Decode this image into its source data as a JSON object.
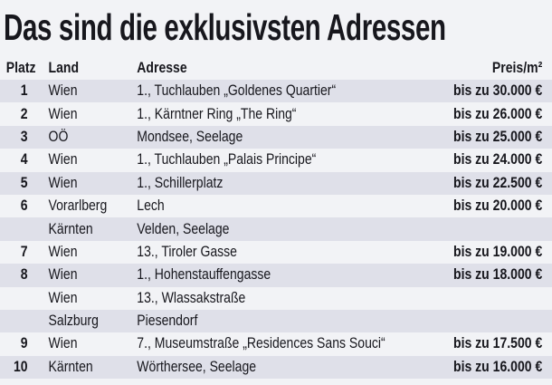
{
  "title": "Das sind die exklusivsten Adressen",
  "colors": {
    "background": "#f2f3f6",
    "row_shade": "#dfe0e9",
    "text": "#17171d"
  },
  "table": {
    "headers": {
      "platz": "Platz",
      "land": "Land",
      "adresse": "Adresse",
      "preis": "Preis/m²"
    },
    "rows": [
      {
        "rank": "1",
        "land": "Wien",
        "adresse": "1., Tuchlauben „Goldenes Quartier“",
        "preis": "bis zu 30.000 €"
      },
      {
        "rank": "2",
        "land": "Wien",
        "adresse": "1., Kärntner Ring „The Ring“",
        "preis": "bis zu 26.000 €"
      },
      {
        "rank": "3",
        "land": "OÖ",
        "adresse": "Mondsee, Seelage",
        "preis": "bis zu 25.000 €"
      },
      {
        "rank": "4",
        "land": "Wien",
        "adresse": "1., Tuchlauben „Palais Principe“",
        "preis": "bis zu 24.000 €"
      },
      {
        "rank": "5",
        "land": "Wien",
        "adresse": "1., Schillerplatz",
        "preis": "bis zu 22.500 €"
      },
      {
        "rank": "6",
        "land": "Vorarlberg",
        "adresse": "Lech",
        "preis": "bis zu 20.000 €"
      },
      {
        "rank": "",
        "land": "Kärnten",
        "adresse": "Velden, Seelage",
        "preis": ""
      },
      {
        "rank": "7",
        "land": "Wien",
        "adresse": "13., Tiroler Gasse",
        "preis": "bis zu 19.000 €"
      },
      {
        "rank": "8",
        "land": "Wien",
        "adresse": "1., Hohenstauffengasse",
        "preis": "bis zu 18.000 €"
      },
      {
        "rank": "",
        "land": "Wien",
        "adresse": "13., Wlassakstraße",
        "preis": ""
      },
      {
        "rank": "",
        "land": "Salzburg",
        "adresse": "Piesendorf",
        "preis": ""
      },
      {
        "rank": "9",
        "land": "Wien",
        "adresse": "7., Museumstraße „Residences Sans Souci“",
        "preis": "bis zu 17.500 €"
      },
      {
        "rank": "10",
        "land": "Kärnten",
        "adresse": "Wörthersee, Seelage",
        "preis": "bis zu 16.000 €"
      }
    ]
  },
  "chart_data": {
    "type": "table",
    "title": "Das sind die exklusivsten Adressen",
    "columns": [
      "Platz",
      "Land",
      "Adresse",
      "Preis/m²"
    ],
    "rows": [
      [
        "1",
        "Wien",
        "1., Tuchlauben „Goldenes Quartier“",
        "bis zu 30.000 €"
      ],
      [
        "2",
        "Wien",
        "1., Kärntner Ring „The Ring“",
        "bis zu 26.000 €"
      ],
      [
        "3",
        "OÖ",
        "Mondsee, Seelage",
        "bis zu 25.000 €"
      ],
      [
        "4",
        "Wien",
        "1., Tuchlauben „Palais Principe“",
        "bis zu 24.000 €"
      ],
      [
        "5",
        "Wien",
        "1., Schillerplatz",
        "bis zu 22.500 €"
      ],
      [
        "6",
        "Vorarlberg",
        "Lech",
        "bis zu 20.000 €"
      ],
      [
        "",
        "Kärnten",
        "Velden, Seelage",
        ""
      ],
      [
        "7",
        "Wien",
        "13., Tiroler Gasse",
        "bis zu 19.000 €"
      ],
      [
        "8",
        "Wien",
        "1., Hohenstauffengasse",
        "bis zu 18.000 €"
      ],
      [
        "",
        "Wien",
        "13., Wlassakstraße",
        ""
      ],
      [
        "",
        "Salzburg",
        "Piesendorf",
        ""
      ],
      [
        "9",
        "Wien",
        "7., Museumstraße „Residences Sans Souci“",
        "bis zu 17.500 €"
      ],
      [
        "10",
        "Kärnten",
        "Wörthersee, Seelage",
        "bis zu 16.000 €"
      ]
    ],
    "prices_eur_per_m2_max": [
      30000,
      26000,
      25000,
      24000,
      22500,
      20000,
      null,
      19000,
      18000,
      null,
      null,
      17500,
      16000
    ]
  }
}
